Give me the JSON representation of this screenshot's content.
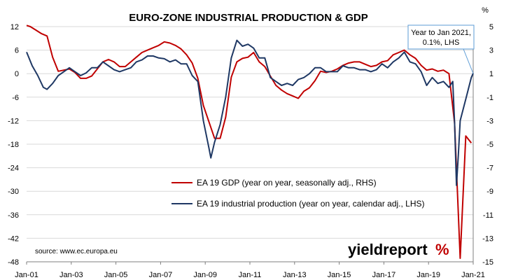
{
  "chart_data": {
    "type": "line",
    "title": "EURO-ZONE INDUSTRIAL PRODUCTION & GDP",
    "right_axis_unit": "%",
    "source": "source: www.ec.europa.eu",
    "logo": {
      "text": "yieldreport",
      "mark": "%"
    },
    "annotation": {
      "lines": [
        "Year to Jan 2021,",
        "0.1%, LHS"
      ],
      "points_to": {
        "x": "2021-01",
        "y": 0.1,
        "axis": "left"
      }
    },
    "colors": {
      "gdp": "#c00000",
      "ip": "#1f3864",
      "grid": "#d9d9d9",
      "axis": "#7f7f7f",
      "text": "#000000"
    },
    "grid": "horizontal",
    "legend_position": "center",
    "x_axis": {
      "start": "2001-01",
      "end": "2021-01",
      "tick_labels": [
        "Jan-01",
        "Jan-03",
        "Jan-05",
        "Jan-07",
        "Jan-09",
        "Jan-11",
        "Jan-13",
        "Jan-15",
        "Jan-17",
        "Jan-19",
        "Jan-21"
      ]
    },
    "y_left": {
      "min": -48,
      "max": 12,
      "ticks": [
        "12",
        "6",
        "0",
        "-6",
        "-12",
        "-18",
        "-24",
        "-30",
        "-36",
        "-42",
        "-48"
      ]
    },
    "y_right": {
      "min": -15,
      "max": 5,
      "ticks": [
        "5",
        "3",
        "1",
        "-1",
        "-3",
        "-5",
        "-7",
        "-9",
        "-11",
        "-13",
        "-15"
      ]
    },
    "series": [
      {
        "name": "EA 19 GDP (year on year, seasonally adj., RHS)",
        "key": "gdp",
        "axis": "right",
        "points": [
          [
            "2001-01",
            5.1
          ],
          [
            "2001-03",
            5.0
          ],
          [
            "2001-06",
            4.7
          ],
          [
            "2001-09",
            4.4
          ],
          [
            "2001-12",
            4.2
          ],
          [
            "2002-03",
            2.4
          ],
          [
            "2002-06",
            1.2
          ],
          [
            "2002-09",
            1.3
          ],
          [
            "2002-12",
            1.4
          ],
          [
            "2003-03",
            1.1
          ],
          [
            "2003-06",
            0.6
          ],
          [
            "2003-09",
            0.6
          ],
          [
            "2003-12",
            0.8
          ],
          [
            "2004-03",
            1.4
          ],
          [
            "2004-06",
            2.0
          ],
          [
            "2004-09",
            2.2
          ],
          [
            "2004-12",
            2.0
          ],
          [
            "2005-03",
            1.6
          ],
          [
            "2005-06",
            1.6
          ],
          [
            "2005-09",
            2.0
          ],
          [
            "2005-12",
            2.4
          ],
          [
            "2006-03",
            2.8
          ],
          [
            "2006-06",
            3.0
          ],
          [
            "2006-09",
            3.2
          ],
          [
            "2006-12",
            3.4
          ],
          [
            "2007-03",
            3.7
          ],
          [
            "2007-06",
            3.6
          ],
          [
            "2007-09",
            3.4
          ],
          [
            "2007-12",
            3.1
          ],
          [
            "2008-03",
            2.6
          ],
          [
            "2008-06",
            1.9
          ],
          [
            "2008-09",
            0.6
          ],
          [
            "2008-12",
            -1.7
          ],
          [
            "2009-03",
            -3.1
          ],
          [
            "2009-06",
            -4.5
          ],
          [
            "2009-09",
            -4.5
          ],
          [
            "2009-12",
            -2.7
          ],
          [
            "2010-03",
            0.7
          ],
          [
            "2010-06",
            2.0
          ],
          [
            "2010-09",
            2.3
          ],
          [
            "2010-12",
            2.4
          ],
          [
            "2011-03",
            2.8
          ],
          [
            "2011-06",
            2.0
          ],
          [
            "2011-09",
            1.6
          ],
          [
            "2011-12",
            0.8
          ],
          [
            "2012-03",
            0.0
          ],
          [
            "2012-06",
            -0.4
          ],
          [
            "2012-09",
            -0.7
          ],
          [
            "2012-12",
            -0.9
          ],
          [
            "2013-03",
            -1.1
          ],
          [
            "2013-06",
            -0.5
          ],
          [
            "2013-09",
            -0.2
          ],
          [
            "2013-12",
            0.4
          ],
          [
            "2014-03",
            1.2
          ],
          [
            "2014-06",
            1.1
          ],
          [
            "2014-09",
            1.2
          ],
          [
            "2014-12",
            1.4
          ],
          [
            "2015-03",
            1.7
          ],
          [
            "2015-06",
            1.9
          ],
          [
            "2015-09",
            2.0
          ],
          [
            "2015-12",
            2.0
          ],
          [
            "2016-03",
            1.8
          ],
          [
            "2016-06",
            1.6
          ],
          [
            "2016-09",
            1.7
          ],
          [
            "2016-12",
            2.0
          ],
          [
            "2017-03",
            2.1
          ],
          [
            "2017-06",
            2.6
          ],
          [
            "2017-09",
            2.8
          ],
          [
            "2017-12",
            3.0
          ],
          [
            "2018-03",
            2.6
          ],
          [
            "2018-06",
            2.3
          ],
          [
            "2018-09",
            1.7
          ],
          [
            "2018-12",
            1.3
          ],
          [
            "2019-03",
            1.4
          ],
          [
            "2019-06",
            1.2
          ],
          [
            "2019-09",
            1.3
          ],
          [
            "2019-12",
            1.0
          ],
          [
            "2020-03",
            -3.2
          ],
          [
            "2020-06",
            -14.7
          ],
          [
            "2020-09",
            -4.3
          ],
          [
            "2020-12",
            -4.9
          ]
        ]
      },
      {
        "name": "EA 19 industrial production (year on year, calendar adj., LHS)",
        "key": "ip",
        "axis": "left",
        "points": [
          [
            "2001-01",
            5.5
          ],
          [
            "2001-04",
            2.0
          ],
          [
            "2001-07",
            -0.5
          ],
          [
            "2001-10",
            -3.5
          ],
          [
            "2001-12",
            -4.0
          ],
          [
            "2002-03",
            -2.5
          ],
          [
            "2002-06",
            -0.5
          ],
          [
            "2002-09",
            0.5
          ],
          [
            "2002-12",
            1.5
          ],
          [
            "2003-03",
            0.5
          ],
          [
            "2003-06",
            -0.5
          ],
          [
            "2003-09",
            0.2
          ],
          [
            "2003-12",
            1.5
          ],
          [
            "2004-03",
            1.5
          ],
          [
            "2004-06",
            3.0
          ],
          [
            "2004-09",
            2.0
          ],
          [
            "2004-12",
            1.0
          ],
          [
            "2005-03",
            0.5
          ],
          [
            "2005-06",
            1.0
          ],
          [
            "2005-09",
            1.5
          ],
          [
            "2005-12",
            3.0
          ],
          [
            "2006-03",
            3.5
          ],
          [
            "2006-06",
            4.5
          ],
          [
            "2006-09",
            4.5
          ],
          [
            "2006-12",
            4.0
          ],
          [
            "2007-03",
            3.8
          ],
          [
            "2007-06",
            3.0
          ],
          [
            "2007-09",
            3.5
          ],
          [
            "2007-12",
            2.5
          ],
          [
            "2008-03",
            2.5
          ],
          [
            "2008-06",
            -0.5
          ],
          [
            "2008-09",
            -2.0
          ],
          [
            "2008-12",
            -12.0
          ],
          [
            "2009-03",
            -19.0
          ],
          [
            "2009-04",
            -21.5
          ],
          [
            "2009-06",
            -17.5
          ],
          [
            "2009-09",
            -13.0
          ],
          [
            "2009-12",
            -6.0
          ],
          [
            "2010-03",
            4.0
          ],
          [
            "2010-06",
            8.5
          ],
          [
            "2010-09",
            7.0
          ],
          [
            "2010-12",
            7.5
          ],
          [
            "2011-03",
            6.5
          ],
          [
            "2011-06",
            4.0
          ],
          [
            "2011-09",
            4.0
          ],
          [
            "2011-12",
            -1.0
          ],
          [
            "2012-03",
            -2.0
          ],
          [
            "2012-06",
            -3.0
          ],
          [
            "2012-09",
            -2.5
          ],
          [
            "2012-12",
            -3.0
          ],
          [
            "2013-03",
            -1.5
          ],
          [
            "2013-06",
            -1.0
          ],
          [
            "2013-09",
            0.0
          ],
          [
            "2013-12",
            1.5
          ],
          [
            "2014-03",
            1.5
          ],
          [
            "2014-06",
            0.5
          ],
          [
            "2014-09",
            0.5
          ],
          [
            "2014-12",
            0.5
          ],
          [
            "2015-03",
            2.0
          ],
          [
            "2015-06",
            1.5
          ],
          [
            "2015-09",
            1.5
          ],
          [
            "2015-12",
            1.0
          ],
          [
            "2016-03",
            1.0
          ],
          [
            "2016-06",
            0.5
          ],
          [
            "2016-09",
            1.0
          ],
          [
            "2016-12",
            2.5
          ],
          [
            "2017-03",
            1.5
          ],
          [
            "2017-06",
            3.0
          ],
          [
            "2017-09",
            4.0
          ],
          [
            "2017-12",
            5.5
          ],
          [
            "2018-03",
            3.0
          ],
          [
            "2018-06",
            2.5
          ],
          [
            "2018-09",
            0.5
          ],
          [
            "2018-12",
            -3.0
          ],
          [
            "2019-03",
            -1.0
          ],
          [
            "2019-06",
            -2.5
          ],
          [
            "2019-09",
            -2.0
          ],
          [
            "2019-12",
            -3.5
          ],
          [
            "2020-02",
            -2.0
          ],
          [
            "2020-03",
            -12.5
          ],
          [
            "2020-04",
            -28.5
          ],
          [
            "2020-05",
            -21.0
          ],
          [
            "2020-06",
            -12.0
          ],
          [
            "2020-09",
            -6.5
          ],
          [
            "2020-12",
            -1.0
          ],
          [
            "2021-01",
            0.1
          ]
        ]
      }
    ]
  }
}
